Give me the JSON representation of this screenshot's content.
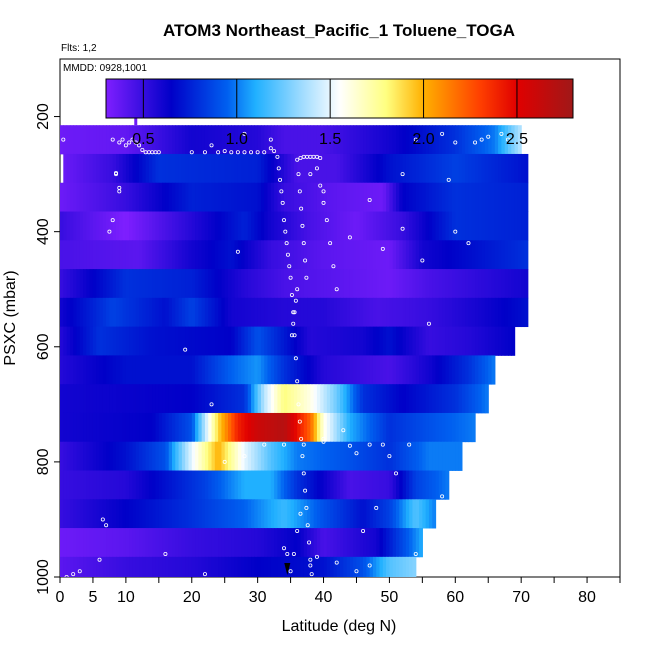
{
  "chart_data": {
    "type": "heatmap",
    "title": "ATOM3 Northeast_Pacific_1 Toluene_TOGA",
    "flights_label": "Flts: 1,2",
    "dates_label": "MMDD: 0928,1001",
    "xlabel": "Latitude (deg N)",
    "ylabel": "PSXC (mbar)",
    "xlim": [
      0,
      85
    ],
    "ylim": [
      1000,
      100
    ],
    "x_ticks": [
      0,
      5,
      10,
      20,
      30,
      40,
      50,
      60,
      70,
      80
    ],
    "x_tick_labels": [
      "0",
      "5",
      "10",
      "20",
      "30",
      "40",
      "50",
      "60",
      "70",
      "80"
    ],
    "y_ticks": [
      200,
      400,
      600,
      800,
      1000
    ],
    "y_tick_labels": [
      "200",
      "400",
      "600",
      "800",
      "1000"
    ],
    "colorbar": {
      "range": [
        0.3,
        2.8
      ],
      "ticks": [
        0.5,
        1.0,
        1.5,
        2.0,
        2.5
      ],
      "tick_labels": [
        "0.5",
        "1.0",
        "1.5",
        "2.0",
        "2.5"
      ],
      "stops": [
        {
          "v": 0.3,
          "c": "#7f1fff"
        },
        {
          "v": 0.65,
          "c": "#0000c8"
        },
        {
          "v": 0.95,
          "c": "#0060f0"
        },
        {
          "v": 1.1,
          "c": "#20b0ff"
        },
        {
          "v": 1.35,
          "c": "#a0dcff"
        },
        {
          "v": 1.55,
          "c": "#ffffff"
        },
        {
          "v": 1.8,
          "c": "#ffff80"
        },
        {
          "v": 2.0,
          "c": "#ffb000"
        },
        {
          "v": 2.3,
          "c": "#ff4000"
        },
        {
          "v": 2.5,
          "c": "#e00000"
        },
        {
          "v": 2.8,
          "c": "#a01818"
        }
      ]
    },
    "pressure_bands": [
      {
        "p_top": 215,
        "p_bot": 265,
        "lat_min": 0.0,
        "lat_max": 70.0,
        "profile": [
          [
            0,
            0.35
          ],
          [
            10,
            0.38
          ],
          [
            20,
            0.6
          ],
          [
            30,
            0.55
          ],
          [
            34,
            0.45
          ],
          [
            40,
            0.45
          ],
          [
            50,
            0.6
          ],
          [
            60,
            0.8
          ],
          [
            66,
            1.0
          ],
          [
            70,
            1.4
          ]
        ]
      },
      {
        "p_top": 265,
        "p_bot": 315,
        "lat_min": 0.5,
        "lat_max": 71.0,
        "profile": [
          [
            0,
            0.35
          ],
          [
            8,
            0.5
          ],
          [
            15,
            0.8
          ],
          [
            30,
            0.75
          ],
          [
            36,
            0.45
          ],
          [
            42,
            0.45
          ],
          [
            50,
            0.7
          ],
          [
            60,
            0.85
          ],
          [
            71,
            0.7
          ]
        ]
      },
      {
        "p_top": 315,
        "p_bot": 365,
        "lat_min": 0.0,
        "lat_max": 71.0,
        "profile": [
          [
            0,
            0.35
          ],
          [
            10,
            0.5
          ],
          [
            20,
            0.75
          ],
          [
            30,
            0.7
          ],
          [
            34,
            0.5
          ],
          [
            41,
            0.4
          ],
          [
            49,
            0.35
          ],
          [
            52,
            0.65
          ],
          [
            60,
            0.8
          ],
          [
            71,
            0.75
          ]
        ]
      },
      {
        "p_top": 365,
        "p_bot": 415,
        "lat_min": 0.0,
        "lat_max": 71.0,
        "profile": [
          [
            0,
            0.5
          ],
          [
            10,
            0.3
          ],
          [
            18,
            0.5
          ],
          [
            28,
            0.75
          ],
          [
            32,
            0.6
          ],
          [
            38,
            0.45
          ],
          [
            45,
            0.35
          ],
          [
            52,
            0.5
          ],
          [
            60,
            0.8
          ],
          [
            71,
            0.75
          ]
        ]
      },
      {
        "p_top": 415,
        "p_bot": 465,
        "lat_min": 0.0,
        "lat_max": 71.0,
        "profile": [
          [
            0,
            0.45
          ],
          [
            12,
            0.4
          ],
          [
            20,
            0.6
          ],
          [
            26,
            0.7
          ],
          [
            32,
            0.5
          ],
          [
            40,
            0.4
          ],
          [
            50,
            0.35
          ],
          [
            55,
            0.6
          ],
          [
            71,
            0.8
          ]
        ]
      },
      {
        "p_top": 465,
        "p_bot": 515,
        "lat_min": 0.0,
        "lat_max": 71.0,
        "profile": [
          [
            0,
            0.5
          ],
          [
            10,
            0.8
          ],
          [
            20,
            0.75
          ],
          [
            28,
            0.55
          ],
          [
            34,
            0.45
          ],
          [
            42,
            0.4
          ],
          [
            50,
            0.35
          ],
          [
            56,
            0.45
          ],
          [
            71,
            0.6
          ]
        ]
      },
      {
        "p_top": 515,
        "p_bot": 565,
        "lat_min": 0.0,
        "lat_max": 71.0,
        "profile": [
          [
            0,
            0.6
          ],
          [
            8,
            0.85
          ],
          [
            16,
            0.7
          ],
          [
            20,
            0.85
          ],
          [
            26,
            0.6
          ],
          [
            34,
            0.55
          ],
          [
            40,
            0.55
          ],
          [
            48,
            0.45
          ],
          [
            56,
            0.5
          ],
          [
            64,
            0.6
          ],
          [
            71,
            0.7
          ]
        ]
      },
      {
        "p_top": 565,
        "p_bot": 615,
        "lat_min": 0.0,
        "lat_max": 69.0,
        "profile": [
          [
            0,
            0.55
          ],
          [
            6,
            0.8
          ],
          [
            14,
            0.7
          ],
          [
            26,
            0.65
          ],
          [
            30,
            0.9
          ],
          [
            38,
            0.55
          ],
          [
            46,
            0.6
          ],
          [
            50,
            0.7
          ],
          [
            56,
            0.5
          ],
          [
            62,
            0.55
          ],
          [
            69,
            0.65
          ]
        ]
      },
      {
        "p_top": 615,
        "p_bot": 665,
        "lat_min": 0.0,
        "lat_max": 66.0,
        "profile": [
          [
            0,
            0.55
          ],
          [
            10,
            0.7
          ],
          [
            20,
            0.7
          ],
          [
            26,
            0.95
          ],
          [
            30,
            1.05
          ],
          [
            34,
            0.8
          ],
          [
            40,
            0.55
          ],
          [
            50,
            0.45
          ],
          [
            56,
            0.6
          ],
          [
            62,
            0.8
          ],
          [
            66,
            1.0
          ]
        ]
      },
      {
        "p_top": 665,
        "p_bot": 715,
        "lat_min": 0.0,
        "lat_max": 65.0,
        "profile": [
          [
            0,
            0.6
          ],
          [
            20,
            0.65
          ],
          [
            28,
            0.8
          ],
          [
            31,
            1.4
          ],
          [
            34,
            1.8
          ],
          [
            38,
            1.6
          ],
          [
            42,
            1.25
          ],
          [
            46,
            0.8
          ],
          [
            52,
            0.65
          ],
          [
            60,
            0.8
          ],
          [
            65,
            1.0
          ]
        ]
      },
      {
        "p_top": 715,
        "p_bot": 765,
        "lat_min": 0.0,
        "lat_max": 63.0,
        "profile": [
          [
            0,
            0.6
          ],
          [
            14,
            0.65
          ],
          [
            20,
            0.9
          ],
          [
            24,
            1.9
          ],
          [
            27,
            2.4
          ],
          [
            30,
            2.6
          ],
          [
            34,
            2.7
          ],
          [
            38,
            2.2
          ],
          [
            40,
            1.6
          ],
          [
            44,
            1.1
          ],
          [
            50,
            0.8
          ],
          [
            56,
            0.9
          ],
          [
            63,
            1.0
          ]
        ]
      },
      {
        "p_top": 765,
        "p_bot": 815,
        "lat_min": 0.0,
        "lat_max": 61.0,
        "profile": [
          [
            0,
            0.5
          ],
          [
            10,
            0.7
          ],
          [
            16,
            0.9
          ],
          [
            20,
            1.5
          ],
          [
            24,
            2.0
          ],
          [
            28,
            1.5
          ],
          [
            32,
            1.2
          ],
          [
            36,
            1.0
          ],
          [
            44,
            0.9
          ],
          [
            50,
            0.8
          ],
          [
            56,
            1.0
          ],
          [
            61,
            1.0
          ]
        ]
      },
      {
        "p_top": 815,
        "p_bot": 865,
        "lat_min": 0.0,
        "lat_max": 59.0,
        "profile": [
          [
            0,
            0.5
          ],
          [
            10,
            0.55
          ],
          [
            12,
            0.6
          ],
          [
            22,
            0.85
          ],
          [
            28,
            1.1
          ],
          [
            32,
            1.1
          ],
          [
            36,
            0.8
          ],
          [
            44,
            0.45
          ],
          [
            50,
            0.5
          ],
          [
            54,
            0.85
          ],
          [
            59,
            1.0
          ]
        ]
      },
      {
        "p_top": 865,
        "p_bot": 915,
        "lat_min": 0.0,
        "lat_max": 57.0,
        "profile": [
          [
            0,
            0.5
          ],
          [
            10,
            0.65
          ],
          [
            20,
            0.8
          ],
          [
            28,
            0.95
          ],
          [
            34,
            1.15
          ],
          [
            40,
            0.9
          ],
          [
            46,
            0.7
          ],
          [
            50,
            0.85
          ],
          [
            54,
            1.2
          ],
          [
            57,
            1.0
          ]
        ]
      },
      {
        "p_top": 915,
        "p_bot": 965,
        "lat_min": 0.0,
        "lat_max": 55.0,
        "profile": [
          [
            0,
            0.35
          ],
          [
            10,
            0.4
          ],
          [
            20,
            0.5
          ],
          [
            30,
            0.55
          ],
          [
            36,
            0.65
          ],
          [
            40,
            0.45
          ],
          [
            48,
            0.6
          ],
          [
            53,
            0.95
          ],
          [
            55,
            1.1
          ]
        ]
      },
      {
        "p_top": 965,
        "p_bot": 1005,
        "lat_min": 0.0,
        "lat_max": 54.0,
        "profile": [
          [
            0,
            0.4
          ],
          [
            10,
            0.5
          ],
          [
            20,
            0.55
          ],
          [
            30,
            0.65
          ],
          [
            40,
            0.7
          ],
          [
            46,
            0.9
          ],
          [
            50,
            1.2
          ],
          [
            54,
            1.3
          ]
        ]
      }
    ],
    "spike": {
      "lat": 11.5,
      "p_top": 150,
      "p_bot": 215,
      "value": 0.35
    },
    "flight_track": [
      [
        0.5,
        240
      ],
      [
        1,
        1000
      ],
      [
        2,
        995
      ],
      [
        3,
        990
      ],
      [
        6,
        970
      ],
      [
        6.5,
        900
      ],
      [
        7,
        910
      ],
      [
        8,
        240
      ],
      [
        9,
        245
      ],
      [
        9.5,
        240
      ],
      [
        10,
        250
      ],
      [
        10.5,
        245
      ],
      [
        11,
        240
      ],
      [
        11.5,
        245
      ],
      [
        12,
        250
      ],
      [
        12.5,
        258
      ],
      [
        13,
        262
      ],
      [
        13.5,
        262
      ],
      [
        14,
        262
      ],
      [
        14.5,
        262
      ],
      [
        15,
        262
      ],
      [
        8.5,
        300
      ],
      [
        9,
        330
      ],
      [
        8,
        380
      ],
      [
        7.5,
        400
      ],
      [
        8.5,
        298
      ],
      [
        9,
        324
      ],
      [
        20,
        262
      ],
      [
        22,
        262
      ],
      [
        24,
        262
      ],
      [
        26,
        262
      ],
      [
        27,
        262
      ],
      [
        28,
        262
      ],
      [
        29,
        262
      ],
      [
        30,
        262
      ],
      [
        31,
        262
      ],
      [
        32,
        255
      ],
      [
        32.5,
        260
      ],
      [
        33,
        270
      ],
      [
        33.2,
        290
      ],
      [
        33.4,
        310
      ],
      [
        33.6,
        330
      ],
      [
        33.8,
        350
      ],
      [
        34,
        380
      ],
      [
        34.2,
        400
      ],
      [
        34.4,
        420
      ],
      [
        34.6,
        440
      ],
      [
        34.8,
        460
      ],
      [
        35,
        480
      ],
      [
        35.2,
        510
      ],
      [
        35.4,
        540
      ],
      [
        35.6,
        580
      ],
      [
        35.8,
        620
      ],
      [
        36,
        660
      ],
      [
        36.2,
        700
      ],
      [
        36.4,
        730
      ],
      [
        36.6,
        760
      ],
      [
        36.8,
        790
      ],
      [
        37,
        820
      ],
      [
        37.2,
        850
      ],
      [
        37.4,
        880
      ],
      [
        37.6,
        910
      ],
      [
        37.8,
        940
      ],
      [
        38,
        970
      ],
      [
        38.2,
        995
      ],
      [
        35,
        990
      ],
      [
        35.5,
        960
      ],
      [
        34,
        950
      ],
      [
        36,
        920
      ],
      [
        36.5,
        890
      ],
      [
        34.5,
        960
      ],
      [
        36,
        275
      ],
      [
        36.5,
        272
      ],
      [
        37,
        270
      ],
      [
        37.5,
        270
      ],
      [
        38,
        270
      ],
      [
        38.5,
        270
      ],
      [
        39,
        270
      ],
      [
        39.5,
        272
      ],
      [
        36.2,
        300
      ],
      [
        36.4,
        330
      ],
      [
        36.6,
        360
      ],
      [
        36.8,
        390
      ],
      [
        37,
        420
      ],
      [
        37.2,
        450
      ],
      [
        37.4,
        480
      ],
      [
        36,
        500
      ],
      [
        35.8,
        520
      ],
      [
        35.6,
        540
      ],
      [
        35.4,
        560
      ],
      [
        35.2,
        580
      ],
      [
        39,
        290
      ],
      [
        39.5,
        320
      ],
      [
        40,
        350
      ],
      [
        40.5,
        380
      ],
      [
        41,
        420
      ],
      [
        41.5,
        460
      ],
      [
        42,
        500
      ],
      [
        40,
        330
      ],
      [
        38,
        300
      ],
      [
        19,
        605
      ],
      [
        23,
        700
      ],
      [
        27,
        435
      ],
      [
        40,
        765
      ],
      [
        37,
        770
      ],
      [
        34,
        770
      ],
      [
        31,
        770
      ],
      [
        28,
        790
      ],
      [
        25,
        800
      ],
      [
        44,
        410
      ],
      [
        47,
        345
      ],
      [
        49,
        430
      ],
      [
        52,
        395
      ],
      [
        55,
        450
      ],
      [
        53,
        770
      ],
      [
        51,
        820
      ],
      [
        48,
        880
      ],
      [
        46,
        920
      ],
      [
        56,
        560
      ],
      [
        58,
        860
      ],
      [
        58,
        920
      ],
      [
        54,
        960
      ],
      [
        47,
        980
      ],
      [
        45,
        990
      ],
      [
        42,
        975
      ],
      [
        39,
        965
      ],
      [
        38,
        980
      ],
      [
        16,
        960
      ],
      [
        23,
        250
      ],
      [
        25,
        260
      ],
      [
        28,
        230
      ],
      [
        32,
        240
      ],
      [
        54,
        240
      ],
      [
        58,
        230
      ],
      [
        60,
        245
      ],
      [
        63,
        245
      ],
      [
        65,
        235
      ],
      [
        67,
        230
      ],
      [
        68,
        240
      ],
      [
        64,
        240
      ],
      [
        52,
        300
      ],
      [
        59,
        310
      ],
      [
        60,
        400
      ],
      [
        62,
        420
      ],
      [
        22,
        995
      ],
      [
        40,
        760
      ],
      [
        43,
        745
      ],
      [
        44,
        772
      ],
      [
        45,
        785
      ],
      [
        47,
        770
      ],
      [
        49,
        770
      ],
      [
        50,
        790
      ]
    ],
    "track_marker_lat": 34.5
  }
}
